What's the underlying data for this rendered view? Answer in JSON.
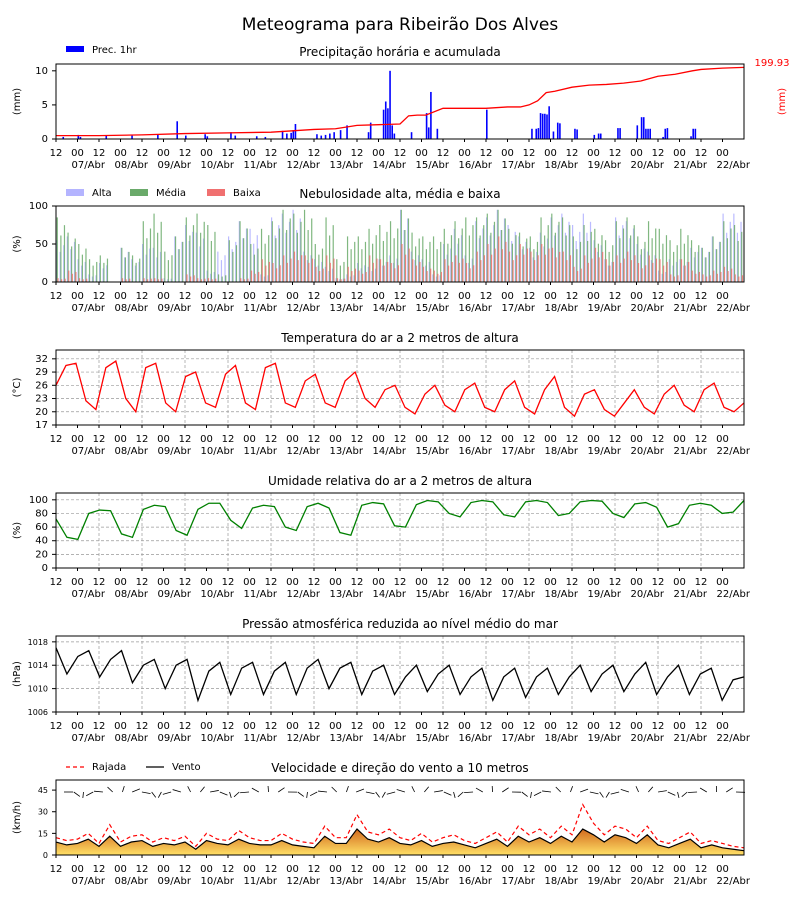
{
  "title": "Meteograma para Ribeirão Dos Alves",
  "x_axis": {
    "hour_labels": [
      "12",
      "00",
      "12",
      "00",
      "12",
      "00",
      "12",
      "00",
      "12",
      "00",
      "12",
      "00",
      "12",
      "00",
      "12",
      "00",
      "12",
      "00",
      "12",
      "00",
      "12",
      "00",
      "12",
      "00",
      "12",
      "00",
      "12",
      "00",
      "12",
      "00",
      "12",
      "00"
    ],
    "date_labels": [
      "07/Abr",
      "08/Abr",
      "09/Abr",
      "10/Abr",
      "11/Abr",
      "12/Abr",
      "13/Abr",
      "14/Abr",
      "15/Abr",
      "16/Abr",
      "17/Abr",
      "18/Abr",
      "19/Abr",
      "20/Abr",
      "21/Abr",
      "22/Abr"
    ]
  },
  "colors": {
    "precip_bar": "#0000ff",
    "precip_accum": "#ff0000",
    "cloud_high": "#b4b4ff",
    "cloud_mid": "#6aaa6a",
    "cloud_low": "#f07070",
    "temperature": "#ff0000",
    "humidity": "#008000",
    "pressure": "#000000",
    "gust": "#ff0000",
    "wind": "#000000"
  },
  "chart_data": [
    {
      "id": "precip",
      "type": "bar",
      "title": "Precipitação horária e acumulada",
      "ylabel": "(mm)",
      "ylabel_right": "(mm)",
      "ylim": [
        0,
        11
      ],
      "yticks": [
        "0",
        "5",
        "10"
      ],
      "right_axis_max_label": "199.93",
      "legend": [
        "Prec. 1hr"
      ],
      "series": [
        {
          "name": "Prec. 1hr",
          "x": [
            0.15,
            0.5,
            0.55,
            1.15,
            1.75,
            2.35,
            2.8,
            3.0,
            3.45,
            3.5,
            4.05,
            4.15,
            4.65,
            4.85,
            5.25,
            5.35,
            5.45,
            5.5,
            5.55,
            6.05,
            6.15,
            6.25,
            6.35,
            6.45,
            6.6,
            6.75,
            7.25,
            7.3,
            7.6,
            7.65,
            7.7,
            7.75,
            7.8,
            7.85,
            8.25,
            8.6,
            8.65,
            8.7,
            8.85,
            10.0,
            11.05,
            11.15,
            11.2,
            11.25,
            11.3,
            11.35,
            11.4,
            11.45,
            11.55,
            11.65,
            11.7,
            12.05,
            12.1,
            12.5,
            12.6,
            12.65,
            13.05,
            13.1,
            13.5,
            13.6,
            13.65,
            13.7,
            13.75,
            13.8,
            14.1,
            14.15,
            14.2,
            14.75,
            14.8,
            14.85
          ],
          "values": [
            0.3,
            0.6,
            0.3,
            0.5,
            0.5,
            0.7,
            2.6,
            0.5,
            0.7,
            0.4,
            1.0,
            0.5,
            0.4,
            0.3,
            1.2,
            0.8,
            0.9,
            1.3,
            2.2,
            0.7,
            0.5,
            0.6,
            0.8,
            1.0,
            1.3,
            2.0,
            1.0,
            2.4,
            4.3,
            5.5,
            4.5,
            10.0,
            2.0,
            0.8,
            1.0,
            3.8,
            1.7,
            6.9,
            1.5,
            4.3,
            1.5,
            1.5,
            1.6,
            3.8,
            3.7,
            3.7,
            3.6,
            4.8,
            1.1,
            2.4,
            2.3,
            1.5,
            1.4,
            0.6,
            0.8,
            0.8,
            1.6,
            1.6,
            2.0,
            3.2,
            3.2,
            1.5,
            1.5,
            1.5,
            0.3,
            1.5,
            1.6,
            0.4,
            1.5,
            1.5
          ]
        },
        {
          "name": "accumulated",
          "x": [
            0,
            1,
            2,
            3,
            4,
            5,
            5.5,
            6,
            6.5,
            7,
            7.5,
            8,
            8.2,
            8.4,
            8.6,
            9.0,
            9.5,
            10,
            10.5,
            10.8,
            11.0,
            11.2,
            11.4,
            11.6,
            12,
            12.4,
            12.8,
            13.2,
            13.6,
            14,
            14.4,
            14.8,
            15,
            15.5,
            16
          ],
          "values": [
            0.5,
            0.5,
            0.6,
            0.8,
            0.9,
            1.0,
            1.2,
            1.4,
            1.5,
            2.0,
            2.1,
            2.2,
            3.4,
            3.5,
            3.5,
            4.5,
            4.5,
            4.5,
            4.7,
            4.7,
            5.0,
            5.6,
            6.8,
            7.0,
            7.6,
            7.9,
            8.0,
            8.2,
            8.5,
            9.2,
            9.5,
            10.0,
            10.2,
            10.4,
            10.5
          ]
        }
      ]
    },
    {
      "id": "clouds",
      "type": "bar",
      "title": "Nebulosidade alta, média e baixa",
      "ylabel": "(%)",
      "ylim": [
        0,
        100
      ],
      "yticks": [
        "0",
        "50",
        "100"
      ],
      "legend": [
        "Alta",
        "Média",
        "Baixa"
      ],
      "series": [
        {
          "name": "Alta",
          "values": [
            55,
            60,
            30,
            10,
            25,
            0,
            45,
            30,
            50,
            45,
            5,
            60,
            75,
            65,
            15,
            40,
            60,
            80,
            70,
            10,
            85,
            90,
            95,
            40,
            30,
            20,
            5,
            10,
            25,
            20,
            30,
            35,
            95,
            40,
            30,
            10,
            50,
            70,
            35,
            80,
            85,
            95,
            75,
            60,
            45,
            65,
            85,
            90,
            75,
            90,
            55,
            30,
            85,
            80,
            50,
            40,
            15,
            30,
            30,
            45,
            45,
            60,
            90,
            90
          ]
        },
        {
          "name": "Média",
          "values": [
            85,
            65,
            50,
            30,
            35,
            0,
            45,
            35,
            80,
            90,
            40,
            60,
            85,
            90,
            75,
            10,
            55,
            80,
            50,
            70,
            80,
            95,
            90,
            95,
            50,
            85,
            30,
            60,
            60,
            70,
            75,
            80,
            95,
            65,
            60,
            60,
            70,
            80,
            85,
            85,
            90,
            95,
            70,
            65,
            60,
            85,
            90,
            85,
            60,
            75,
            70,
            55,
            80,
            85,
            60,
            80,
            70,
            55,
            70,
            55,
            45,
            60,
            80,
            75
          ]
        },
        {
          "name": "Baixa",
          "values": [
            5,
            15,
            5,
            0,
            0,
            0,
            5,
            0,
            5,
            5,
            0,
            0,
            10,
            5,
            5,
            0,
            0,
            5,
            15,
            30,
            25,
            35,
            40,
            35,
            20,
            35,
            5,
            20,
            15,
            35,
            30,
            25,
            50,
            30,
            20,
            15,
            30,
            35,
            25,
            40,
            50,
            60,
            40,
            50,
            40,
            50,
            45,
            40,
            20,
            35,
            45,
            30,
            35,
            40,
            25,
            35,
            30,
            10,
            30,
            15,
            10,
            15,
            20,
            10
          ]
        }
      ]
    },
    {
      "id": "temperature",
      "type": "line",
      "title": "Temperatura do ar a 2 metros de altura",
      "ylabel": "(°C)",
      "ylim": [
        17,
        34
      ],
      "yticks": [
        "17",
        "20",
        "23",
        "26",
        "29",
        "32"
      ],
      "series": [
        {
          "name": "",
          "values": [
            26,
            30.5,
            31,
            22.5,
            20.5,
            30,
            31.5,
            23,
            20,
            30,
            31,
            22,
            20,
            28,
            29,
            22,
            21,
            28.5,
            30.5,
            22,
            20.5,
            30,
            31,
            22,
            21,
            27,
            28.5,
            22,
            21,
            27,
            29,
            23,
            21,
            25,
            26,
            21,
            19.5,
            24,
            26,
            21.5,
            20,
            25,
            26.5,
            21,
            20,
            25,
            27,
            21,
            19.5,
            25,
            28,
            21,
            19,
            24,
            25,
            20.5,
            19,
            22,
            25,
            21,
            19.5,
            24,
            26,
            21.5,
            20,
            25,
            26.5,
            21,
            20,
            22
          ]
        }
      ]
    },
    {
      "id": "humidity",
      "type": "line",
      "title": "Umidade relativa do ar a 2 metros de altura",
      "ylabel": "(%)",
      "ylim": [
        0,
        110
      ],
      "yticks": [
        "0",
        "20",
        "40",
        "60",
        "80",
        "100"
      ],
      "series": [
        {
          "name": "",
          "values": [
            72,
            45,
            42,
            80,
            85,
            84,
            50,
            45,
            86,
            92,
            90,
            55,
            48,
            86,
            95,
            95,
            70,
            58,
            88,
            92,
            90,
            60,
            55,
            90,
            95,
            88,
            52,
            48,
            92,
            96,
            94,
            62,
            60,
            93,
            99,
            97,
            80,
            75,
            96,
            99,
            97,
            78,
            75,
            97,
            99,
            96,
            77,
            80,
            97,
            99,
            98,
            80,
            74,
            94,
            96,
            89,
            60,
            65,
            92,
            95,
            92,
            80,
            82,
            99
          ]
        }
      ]
    },
    {
      "id": "pressure",
      "type": "line",
      "title": "Pressão atmosférica reduzida ao nível médio do mar",
      "ylabel": "(hPa)",
      "ylim": [
        1006,
        1019
      ],
      "yticks": [
        "1006",
        "1010",
        "1014",
        "1018"
      ],
      "series": [
        {
          "name": "",
          "values": [
            1017,
            1012.5,
            1015.5,
            1016.5,
            1012,
            1015,
            1016.5,
            1011,
            1014,
            1015,
            1010,
            1014,
            1015,
            1008,
            1013,
            1014.5,
            1009,
            1013.5,
            1014.5,
            1009,
            1013,
            1014.5,
            1009,
            1013.5,
            1015,
            1010,
            1013.5,
            1014.5,
            1009,
            1013,
            1014,
            1009,
            1012,
            1014,
            1009.5,
            1012.5,
            1014,
            1009,
            1012,
            1013.5,
            1008,
            1012,
            1013.5,
            1008.5,
            1012,
            1013.5,
            1009,
            1012,
            1014,
            1009.5,
            1012.5,
            1014,
            1009.5,
            1012.5,
            1014.5,
            1009,
            1012,
            1014,
            1009,
            1012.5,
            1013.5,
            1008,
            1011.5,
            1012
          ]
        }
      ]
    },
    {
      "id": "wind",
      "type": "area",
      "title": "Velocidade e direção do vento a 10 metros",
      "ylabel": "(km/h)",
      "ylim": [
        0,
        52
      ],
      "yticks": [
        "0",
        "15",
        "30",
        "45"
      ],
      "legend": [
        "Rajada",
        "Vento"
      ],
      "series": [
        {
          "name": "Rajada",
          "values": [
            12,
            10,
            11,
            15,
            8,
            21,
            9,
            13,
            14,
            9,
            12,
            10,
            13,
            6,
            15,
            11,
            10,
            17,
            12,
            10,
            10,
            15,
            11,
            9,
            8,
            20,
            12,
            12,
            28,
            16,
            14,
            18,
            12,
            10,
            15,
            9,
            12,
            14,
            10,
            8,
            12,
            16,
            9,
            20,
            14,
            18,
            12,
            20,
            14,
            35,
            22,
            14,
            20,
            18,
            12,
            20,
            10,
            8,
            12,
            16,
            8,
            10,
            8,
            6,
            5
          ]
        },
        {
          "name": "Vento",
          "values": [
            9,
            7,
            8,
            11,
            6,
            13,
            6,
            9,
            10,
            6,
            8,
            7,
            9,
            4,
            10,
            8,
            7,
            11,
            8,
            7,
            7,
            10,
            7,
            6,
            5,
            13,
            8,
            8,
            18,
            11,
            9,
            12,
            8,
            7,
            10,
            6,
            8,
            9,
            7,
            5,
            8,
            11,
            6,
            13,
            9,
            12,
            8,
            13,
            9,
            18,
            14,
            9,
            14,
            12,
            8,
            14,
            7,
            5,
            8,
            11,
            5,
            7,
            5,
            4,
            3
          ]
        }
      ]
    }
  ]
}
